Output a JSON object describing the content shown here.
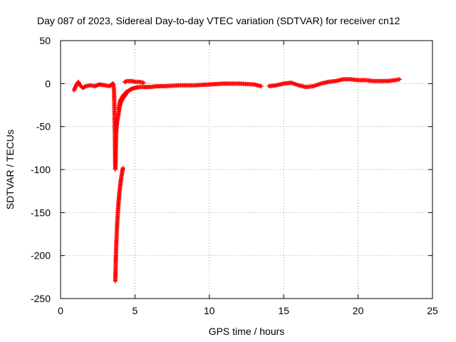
{
  "chart_data": {
    "type": "scatter",
    "title": "Day 087 of 2023, Sidereal Day-to-day VTEC variation (SDTVAR) for receiver cn12",
    "xlabel": "GPS time / hours",
    "ylabel": "SDTVAR / TECUs",
    "xlim": [
      0,
      25
    ],
    "ylim": [
      -250,
      50
    ],
    "xticks": [
      0,
      5,
      10,
      15,
      20,
      25
    ],
    "yticks": [
      50,
      0,
      -50,
      -100,
      -150,
      -200,
      -250
    ],
    "grid": true,
    "marker": "+",
    "series": [
      {
        "name": "SDTVAR",
        "color": "#ff0000",
        "segments": [
          {
            "x": [
              0.9,
              1.0,
              1.1,
              1.2,
              1.3,
              1.5,
              1.7,
              2.0,
              2.3,
              2.6,
              3.0,
              3.3,
              3.5
            ],
            "y": [
              -8,
              -4,
              0,
              2,
              -2,
              -5,
              -3,
              -2,
              -3,
              -1,
              -2,
              -3,
              0
            ]
          },
          {
            "x": [
              3.55,
              3.6,
              3.62,
              3.65,
              3.68,
              3.7,
              3.72,
              3.75,
              3.78,
              3.8,
              3.85,
              3.9,
              3.95,
              4.0,
              4.05,
              4.1,
              4.2,
              4.3,
              4.4,
              4.5,
              4.6,
              4.7,
              4.8,
              5.0,
              5.2
            ],
            "y": [
              0,
              -10,
              -30,
              -60,
              -100,
              -90,
              -70,
              -55,
              -48,
              -45,
              -40,
              -35,
              -30,
              -25,
              -22,
              -20,
              -17,
              -15,
              -12,
              -10,
              -8,
              -7,
              -6,
              -5,
              -4
            ]
          },
          {
            "x": [
              3.68,
              3.7,
              3.72,
              3.75,
              3.8,
              3.85,
              3.9,
              3.95,
              4.0,
              4.05,
              4.1,
              4.15,
              4.2
            ],
            "y": [
              -230,
              -215,
              -200,
              -185,
              -165,
              -150,
              -138,
              -128,
              -120,
              -113,
              -107,
              -102,
              -98
            ]
          },
          {
            "x": [
              3.9,
              4.0,
              4.2,
              4.4,
              4.6,
              4.8,
              5.0,
              5.3,
              5.6,
              6.0,
              6.5,
              7.0,
              8.0,
              9.0,
              10.0,
              11.0,
              12.0,
              13.0,
              13.5
            ],
            "y": [
              -30,
              -20,
              -14,
              -10,
              -8,
              -6,
              -5,
              -4,
              -4,
              -4,
              -3,
              -3,
              -2,
              -2,
              -1,
              0,
              0,
              -1,
              -3
            ]
          },
          {
            "x": [
              4.3,
              4.5,
              4.8,
              5.0,
              5.3,
              5.6
            ],
            "y": [
              2,
              3,
              3,
              2,
              2,
              1
            ]
          },
          {
            "x": [
              14.0,
              14.5,
              15.0,
              15.5,
              16.0,
              16.5,
              17.0,
              17.5,
              18.0,
              18.5,
              19.0,
              19.5,
              20.0,
              20.5,
              21.0,
              21.5,
              22.0,
              22.5,
              22.8
            ],
            "y": [
              -3,
              -2,
              0,
              1,
              -2,
              -4,
              -3,
              0,
              2,
              3,
              5,
              5,
              4,
              4,
              3,
              3,
              3,
              4,
              5
            ]
          }
        ]
      }
    ]
  }
}
